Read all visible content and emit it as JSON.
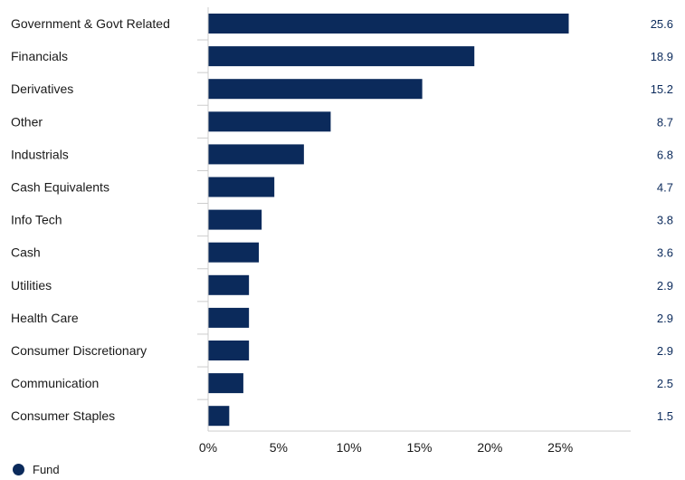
{
  "chart_data": {
    "type": "bar",
    "orientation": "horizontal",
    "categories": [
      "Government & Govt Related",
      "Financials",
      "Derivatives",
      "Other",
      "Industrials",
      "Cash Equivalents",
      "Info Tech",
      "Cash",
      "Utilities",
      "Health Care",
      "Consumer Discretionary",
      "Communication",
      "Consumer Staples"
    ],
    "series": [
      {
        "name": "Fund",
        "values": [
          25.6,
          18.9,
          15.2,
          8.7,
          6.8,
          4.7,
          3.8,
          3.6,
          2.9,
          2.9,
          2.9,
          2.5,
          1.5
        ],
        "value_labels": [
          "25.6",
          "18.9",
          "15.2",
          "8.7",
          "6.8",
          "4.7",
          "3.8",
          "3.6",
          "2.9",
          "2.9",
          "2.9",
          "2.5",
          "1.5"
        ]
      }
    ],
    "xlim": [
      0,
      30
    ],
    "x_ticks": [
      0,
      5,
      10,
      15,
      20,
      25
    ],
    "x_tick_labels": [
      "0%",
      "5%",
      "10%",
      "15%",
      "20%",
      "25%"
    ],
    "grid": false,
    "legend_position": "bottom-left",
    "colors": {
      "bar": "#0b2a5b",
      "axis": "#cccccc"
    }
  }
}
